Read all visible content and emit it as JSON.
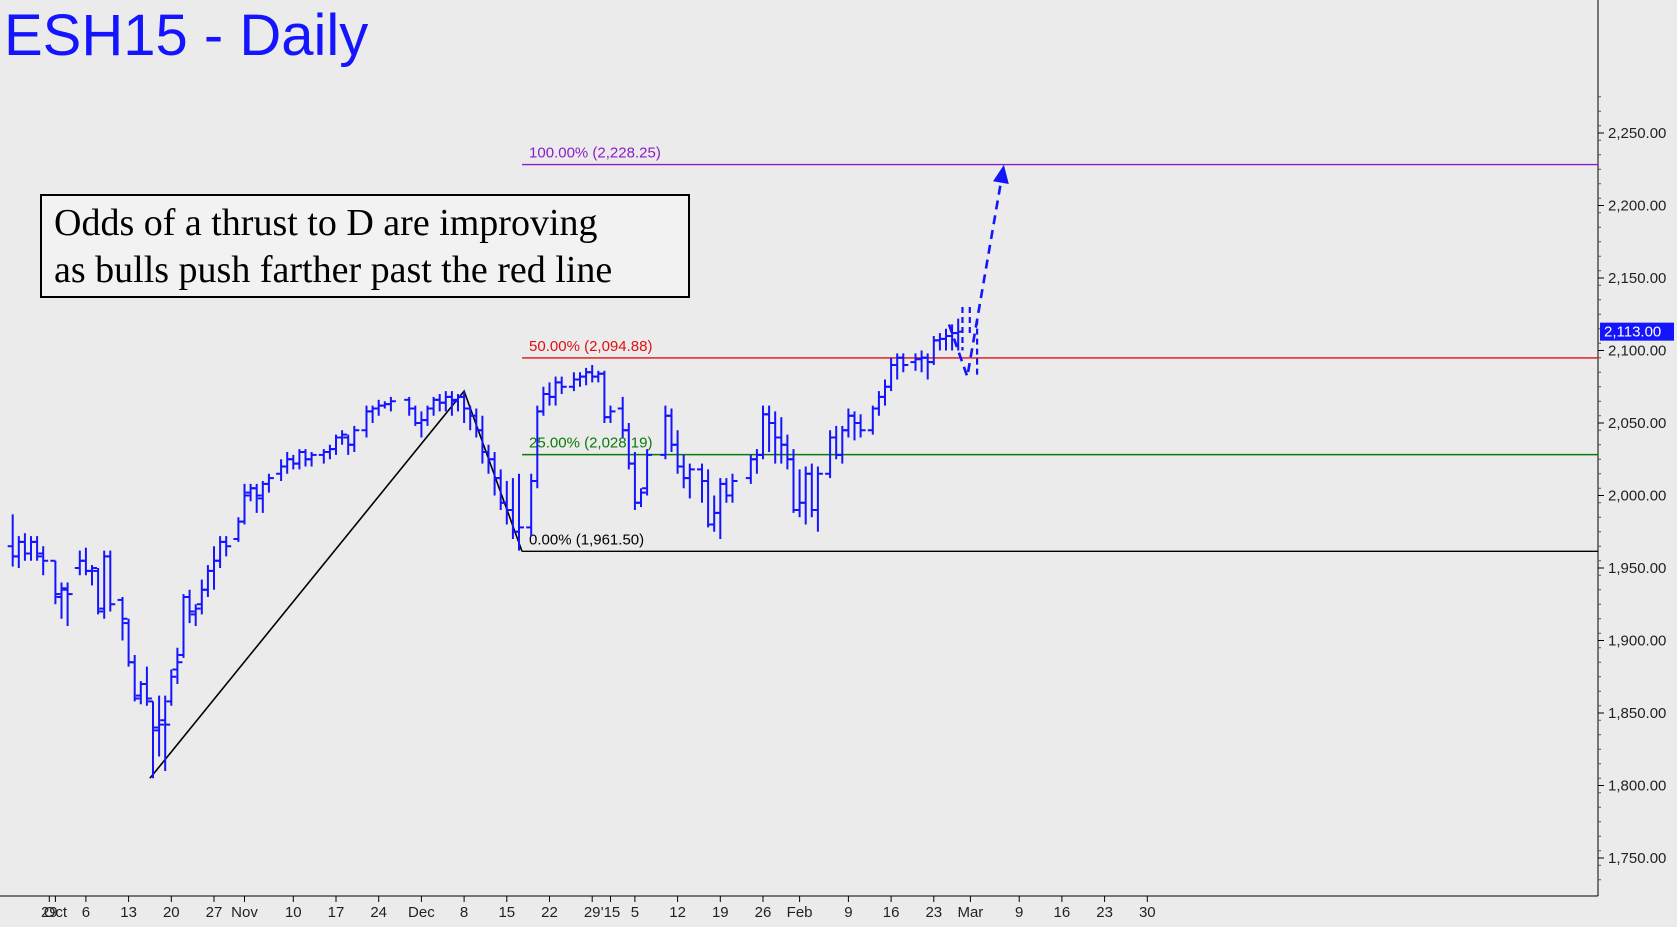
{
  "chart_data": {
    "type": "ohlc",
    "title": "ESH15 - Daily",
    "annotation": [
      "Odds of a thrust to D are improving",
      "as bulls push farther past the red line"
    ],
    "y_axis": {
      "ylim": [
        1710,
        2300
      ],
      "ticks": [
        "1,750.00",
        "1,800.00",
        "1,850.00",
        "1,900.00",
        "1,950.00",
        "2,000.00",
        "2,050.00",
        "2,100.00",
        "2,150.00",
        "2,200.00",
        "2,250.00"
      ],
      "tick_values": [
        1750,
        1800,
        1850,
        1900,
        1950,
        2000,
        2050,
        2100,
        2150,
        2200,
        2250
      ],
      "last_price_label": "2,113.00",
      "last_price": 2113,
      "side": "right"
    },
    "x_axis": {
      "ticks": [
        "29",
        "Oct",
        "6",
        "13",
        "20",
        "27",
        "Nov",
        "10",
        "17",
        "24",
        "Dec",
        "8",
        "15",
        "22",
        "29",
        "'15",
        "5",
        "12",
        "19",
        "26",
        "Feb",
        "9",
        "16",
        "23",
        "Mar",
        "9",
        "16",
        "23",
        "30"
      ],
      "tick_days": [
        -1,
        0,
        5,
        12,
        19,
        26,
        31,
        39,
        46,
        53,
        60,
        67,
        74,
        81,
        88,
        91,
        95,
        102,
        109,
        116,
        122,
        130,
        137,
        144,
        150,
        158,
        165,
        172,
        179
      ]
    },
    "fib_levels": [
      {
        "label": "100.00% (2,228.25)",
        "value": 2228.25,
        "color": "#8c1cc8"
      },
      {
        "label": "50.00% (2,094.88)",
        "value": 2094.88,
        "color": "#e01010"
      },
      {
        "label": "25.00% (2,028.19)",
        "value": 2028.19,
        "color": "#0a7a0a"
      },
      {
        "label": "0.00% (1,961.50)",
        "value": 1961.5,
        "color": "#000000"
      }
    ],
    "pattern_lines": [
      [
        [
          15.5,
          1805
        ],
        [
          67,
          2072
        ],
        [
          76.5,
          1961.5
        ]
      ]
    ],
    "projection": [
      [
        146.5,
        2118
      ],
      [
        149.5,
        2082
      ],
      [
        155.5,
        2228
      ]
    ],
    "bars_fields": [
      "day",
      "open",
      "high",
      "low",
      "close"
    ],
    "bars": [
      [
        -7,
        1965,
        1987,
        1951,
        1958
      ],
      [
        -6,
        1958,
        1972,
        1950,
        1968
      ],
      [
        -5,
        1968,
        1974,
        1955,
        1960
      ],
      [
        -4,
        1960,
        1972,
        1955,
        1968
      ],
      [
        -3,
        1968,
        1972,
        1955,
        1958
      ],
      [
        -2,
        1960,
        1965,
        1945,
        1955
      ],
      [
        0,
        1955,
        1955,
        1925,
        1932
      ],
      [
        1,
        1930,
        1940,
        1915,
        1936
      ],
      [
        2,
        1935,
        1940,
        1910,
        1932
      ],
      [
        4,
        1950,
        1962,
        1945,
        1955
      ],
      [
        5,
        1955,
        1964,
        1945,
        1948
      ],
      [
        6,
        1948,
        1952,
        1938,
        1950
      ],
      [
        7,
        1948,
        1950,
        1918,
        1920
      ],
      [
        8,
        1922,
        1962,
        1915,
        1958
      ],
      [
        9,
        1958,
        1962,
        1920,
        1925
      ],
      [
        11,
        1928,
        1930,
        1900,
        1915
      ],
      [
        12,
        1912,
        1915,
        1882,
        1885
      ],
      [
        13,
        1885,
        1890,
        1858,
        1860
      ],
      [
        14,
        1862,
        1872,
        1856,
        1870
      ],
      [
        15,
        1870,
        1882,
        1855,
        1860
      ],
      [
        16,
        1858,
        1858,
        1805,
        1840
      ],
      [
        17,
        1838,
        1862,
        1820,
        1842
      ],
      [
        18,
        1845,
        1862,
        1810,
        1842
      ],
      [
        19,
        1858,
        1880,
        1855,
        1875
      ],
      [
        20,
        1880,
        1895,
        1870,
        1885
      ],
      [
        21,
        1890,
        1932,
        1888,
        1930
      ],
      [
        22,
        1930,
        1935,
        1912,
        1920
      ],
      [
        23,
        1918,
        1925,
        1910,
        1922
      ],
      [
        24,
        1925,
        1942,
        1918,
        1935
      ],
      [
        25,
        1935,
        1952,
        1930,
        1948
      ],
      [
        26,
        1948,
        1965,
        1935,
        1955
      ],
      [
        27,
        1955,
        1972,
        1950,
        1968
      ],
      [
        28,
        1968,
        1972,
        1958,
        1965
      ],
      [
        30,
        1970,
        1985,
        1968,
        1982
      ],
      [
        31,
        1982,
        2008,
        1980,
        2000
      ],
      [
        32,
        2002,
        2008,
        1996,
        2005
      ],
      [
        33,
        2005,
        2008,
        1988,
        2000
      ],
      [
        34,
        1998,
        2010,
        1988,
        2008
      ],
      [
        35,
        2008,
        2015,
        2002,
        2012
      ],
      [
        37,
        2015,
        2025,
        2010,
        2020
      ],
      [
        38,
        2020,
        2030,
        2015,
        2025
      ],
      [
        39,
        2025,
        2028,
        2018,
        2022
      ],
      [
        40,
        2022,
        2032,
        2018,
        2030
      ],
      [
        41,
        2030,
        2032,
        2020,
        2025
      ],
      [
        42,
        2025,
        2030,
        2020,
        2028
      ],
      [
        44,
        2028,
        2032,
        2022,
        2030
      ],
      [
        45,
        2030,
        2035,
        2025,
        2032
      ],
      [
        46,
        2032,
        2042,
        2028,
        2040
      ],
      [
        47,
        2040,
        2045,
        2035,
        2042
      ],
      [
        48,
        2040,
        2042,
        2028,
        2035
      ],
      [
        49,
        2035,
        2048,
        2030,
        2045
      ],
      [
        51,
        2045,
        2062,
        2040,
        2058
      ],
      [
        52,
        2058,
        2062,
        2050,
        2060
      ],
      [
        53,
        2060,
        2066,
        2055,
        2062
      ],
      [
        54,
        2062,
        2065,
        2060,
        2063
      ],
      [
        55,
        2063,
        2068,
        2058,
        2065
      ],
      [
        58,
        2066,
        2068,
        2055,
        2060
      ],
      [
        59,
        2060,
        2062,
        2048,
        2050
      ],
      [
        60,
        2050,
        2058,
        2040,
        2052
      ],
      [
        61,
        2052,
        2062,
        2048,
        2060
      ],
      [
        62,
        2060,
        2068,
        2055,
        2066
      ],
      [
        63,
        2066,
        2070,
        2058,
        2064
      ],
      [
        64,
        2064,
        2072,
        2058,
        2068
      ],
      [
        65,
        2068,
        2072,
        2055,
        2066
      ],
      [
        66,
        2065,
        2070,
        2058,
        2068
      ],
      [
        67,
        2068,
        2072,
        2050,
        2060
      ],
      [
        68,
        2060,
        2062,
        2045,
        2055
      ],
      [
        69,
        2055,
        2060,
        2040,
        2045
      ],
      [
        70,
        2045,
        2055,
        2022,
        2030
      ],
      [
        71,
        2030,
        2035,
        2015,
        2025
      ],
      [
        72,
        2025,
        2030,
        2000,
        2012
      ],
      [
        73,
        2012,
        2018,
        1990,
        1995
      ],
      [
        74,
        1995,
        2010,
        1980,
        1990
      ],
      [
        75,
        1990,
        2012,
        1970,
        1975
      ],
      [
        76,
        1975,
        2015,
        1962,
        1978
      ],
      [
        78,
        1978,
        2015,
        1972,
        2010
      ],
      [
        79,
        2010,
        2062,
        2005,
        2058
      ],
      [
        80,
        2058,
        2075,
        2055,
        2070
      ],
      [
        81,
        2070,
        2078,
        2062,
        2068
      ],
      [
        82,
        2068,
        2082,
        2062,
        2078
      ],
      [
        83,
        2078,
        2082,
        2070,
        2075
      ],
      [
        85,
        2075,
        2085,
        2072,
        2080
      ],
      [
        86,
        2080,
        2085,
        2075,
        2082
      ],
      [
        87,
        2082,
        2088,
        2076,
        2085
      ],
      [
        88,
        2085,
        2090,
        2078,
        2082
      ],
      [
        89,
        2082,
        2086,
        2078,
        2084
      ],
      [
        90,
        2084,
        2086,
        2050,
        2054
      ],
      [
        91,
        2054,
        2062,
        2050,
        2058
      ],
      [
        93,
        2060,
        2068,
        2040,
        2045
      ],
      [
        94,
        2045,
        2050,
        2018,
        2022
      ],
      [
        95,
        2022,
        2030,
        1990,
        1995
      ],
      [
        96,
        1995,
        2005,
        1992,
        2002
      ],
      [
        97,
        2005,
        2032,
        2000,
        2028
      ],
      [
        100,
        2028,
        2062,
        2025,
        2055
      ],
      [
        101,
        2055,
        2060,
        2030,
        2035
      ],
      [
        102,
        2035,
        2045,
        2015,
        2020
      ],
      [
        103,
        2020,
        2028,
        2005,
        2012
      ],
      [
        104,
        2012,
        2022,
        1998,
        2018
      ],
      [
        106,
        2018,
        2022,
        1995,
        2010
      ],
      [
        107,
        2010,
        2018,
        1978,
        1980
      ],
      [
        108,
        1980,
        2000,
        1975,
        1988
      ],
      [
        109,
        1988,
        2012,
        1970,
        2008
      ],
      [
        110,
        2008,
        2012,
        1995,
        2000
      ],
      [
        111,
        2000,
        2015,
        1995,
        2010
      ],
      [
        114,
        2012,
        2028,
        2008,
        2025
      ],
      [
        115,
        2025,
        2032,
        2015,
        2028
      ],
      [
        116,
        2028,
        2062,
        2025,
        2056
      ],
      [
        117,
        2056,
        2062,
        2030,
        2050
      ],
      [
        118,
        2050,
        2058,
        2022,
        2040
      ],
      [
        119,
        2040,
        2054,
        2022,
        2035
      ],
      [
        120,
        2035,
        2042,
        2018,
        2025
      ],
      [
        121,
        2025,
        2032,
        1988,
        1990
      ],
      [
        122,
        1990,
        2018,
        1985,
        1995
      ],
      [
        123,
        1995,
        2020,
        1980,
        2015
      ],
      [
        124,
        2015,
        2022,
        1985,
        1990
      ],
      [
        125,
        1990,
        2020,
        1975,
        2015
      ],
      [
        127,
        2015,
        2045,
        2012,
        2040
      ],
      [
        128,
        2040,
        2048,
        2025,
        2028
      ],
      [
        129,
        2028,
        2048,
        2022,
        2045
      ],
      [
        130,
        2045,
        2060,
        2040,
        2055
      ],
      [
        131,
        2055,
        2058,
        2038,
        2050
      ],
      [
        132,
        2050,
        2056,
        2040,
        2045
      ],
      [
        134,
        2045,
        2062,
        2042,
        2060
      ],
      [
        135,
        2060,
        2072,
        2055,
        2068
      ],
      [
        136,
        2068,
        2080,
        2062,
        2075
      ],
      [
        137,
        2075,
        2095,
        2072,
        2090
      ],
      [
        138,
        2090,
        2098,
        2080,
        2095
      ],
      [
        139,
        2095,
        2098,
        2085,
        2090
      ],
      [
        141,
        2092,
        2098,
        2086,
        2094
      ],
      [
        142,
        2094,
        2100,
        2085,
        2095
      ],
      [
        143,
        2095,
        2098,
        2080,
        2092
      ],
      [
        144,
        2092,
        2110,
        2090,
        2107
      ],
      [
        145,
        2107,
        2112,
        2100,
        2108
      ],
      [
        146,
        2108,
        2115,
        2100,
        2110
      ],
      [
        147,
        2110,
        2118,
        2100,
        2112
      ],
      [
        148,
        2112,
        2122,
        2100,
        2113
      ]
    ],
    "projected_bars_fields": [
      "day",
      "high",
      "low"
    ],
    "projected_bars": [
      [
        148.7,
        2130,
        2100
      ],
      [
        149.9,
        2130,
        2110
      ],
      [
        151.1,
        2122,
        2082
      ]
    ]
  }
}
